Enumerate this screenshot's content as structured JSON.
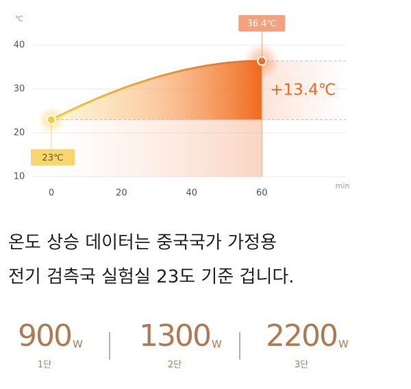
{
  "chart_data": {
    "type": "line",
    "y_unit": "℃",
    "x_unit": "min",
    "x": [
      0,
      60
    ],
    "values": [
      23,
      36.4
    ],
    "value_labels": [
      "23℃",
      "36.4℃"
    ],
    "color": "#f06a1e",
    "start_color": "#f5c93a",
    "xlim": [
      0,
      83
    ],
    "ylim": [
      10,
      40
    ],
    "xticks": [
      0,
      20,
      40,
      60
    ],
    "yticks": [
      10,
      20,
      30,
      40
    ],
    "grid": true,
    "annotation": "+13.4℃"
  },
  "description": {
    "lines": [
      "온도 상승 데이터는 중국국가 가정용",
      "전기 검측국 실험실 23도 기준 겁니다."
    ]
  },
  "power_levels": [
    {
      "value": 900,
      "unit": "W",
      "label": "1단"
    },
    {
      "value": 1300,
      "unit": "W",
      "label": "2단"
    },
    {
      "value": 2200,
      "unit": "W",
      "label": "3단"
    }
  ]
}
